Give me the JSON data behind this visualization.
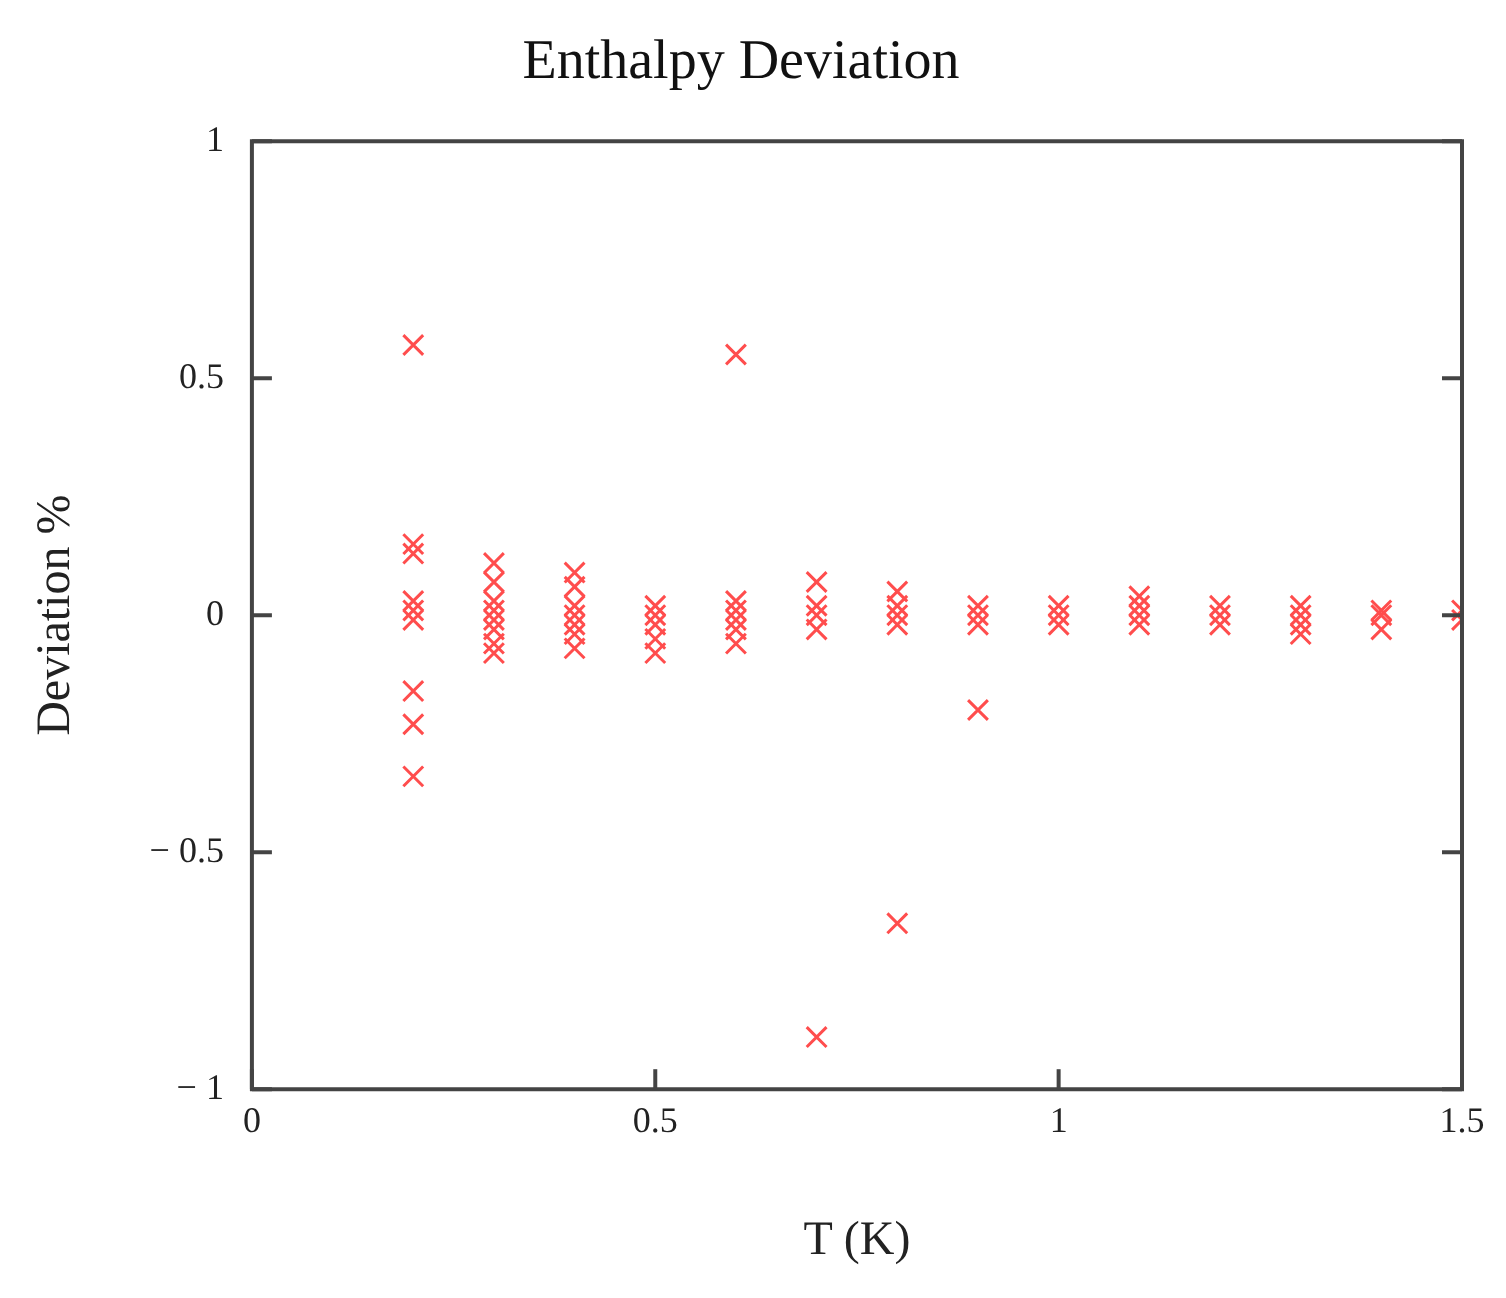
{
  "chart_data": {
    "type": "scatter",
    "title": "Enthalpy Deviation",
    "xlabel": "T (K)",
    "ylabel": "Deviation %",
    "marker": "cross",
    "grid": false,
    "xlim": [
      0,
      1.5
    ],
    "xticks": [
      0,
      0.5,
      1,
      1.5
    ],
    "ylim": [
      -1,
      1
    ],
    "yticks": [
      {
        "value": -1,
        "label": "− 1"
      },
      {
        "value": -0.5,
        "label": "− 0.5"
      },
      0,
      0.5,
      1
    ],
    "series": [
      {
        "color": "#ff4d4d",
        "x": [
          0.2,
          0.2,
          0.2,
          0.2,
          0.2,
          0.2,
          0.2,
          0.2,
          0.2,
          0.3,
          0.3,
          0.3,
          0.3,
          0.3,
          0.3,
          0.3,
          0.3,
          0.4,
          0.4,
          0.4,
          0.4,
          0.4,
          0.4,
          0.4,
          0.5,
          0.5,
          0.5,
          0.5,
          0.5,
          0.6,
          0.6,
          0.6,
          0.6,
          0.6,
          0.6,
          0.7,
          0.7,
          0.7,
          0.7,
          0.7,
          0.8,
          0.8,
          0.8,
          0.8,
          0.8,
          0.9,
          0.9,
          0.9,
          0.9,
          1.0,
          1.0,
          1.0,
          1.1,
          1.1,
          1.1,
          1.1,
          1.2,
          1.2,
          1.2,
          1.3,
          1.3,
          1.3,
          1.3,
          1.4,
          1.4,
          1.4,
          1.5,
          1.5
        ],
        "values": [
          0.57,
          0.15,
          0.13,
          0.03,
          0.01,
          -0.01,
          -0.16,
          -0.23,
          -0.34,
          0.11,
          0.07,
          0.03,
          0.01,
          -0.01,
          -0.03,
          -0.06,
          -0.08,
          0.09,
          0.06,
          0.02,
          0,
          -0.02,
          -0.04,
          -0.07,
          0.02,
          0,
          -0.02,
          -0.05,
          -0.08,
          0.55,
          0.03,
          0.01,
          -0.01,
          -0.03,
          -0.06,
          0.07,
          0.02,
          0,
          -0.03,
          -0.89,
          0.05,
          0.02,
          0,
          -0.02,
          -0.65,
          0.02,
          0,
          -0.02,
          -0.2,
          0.02,
          0,
          -0.02,
          0.04,
          0.02,
          0,
          -0.02,
          0.02,
          0,
          -0.02,
          0.02,
          0,
          -0.02,
          -0.04,
          0.01,
          0,
          -0.03,
          0.01,
          -0.01
        ]
      }
    ]
  }
}
